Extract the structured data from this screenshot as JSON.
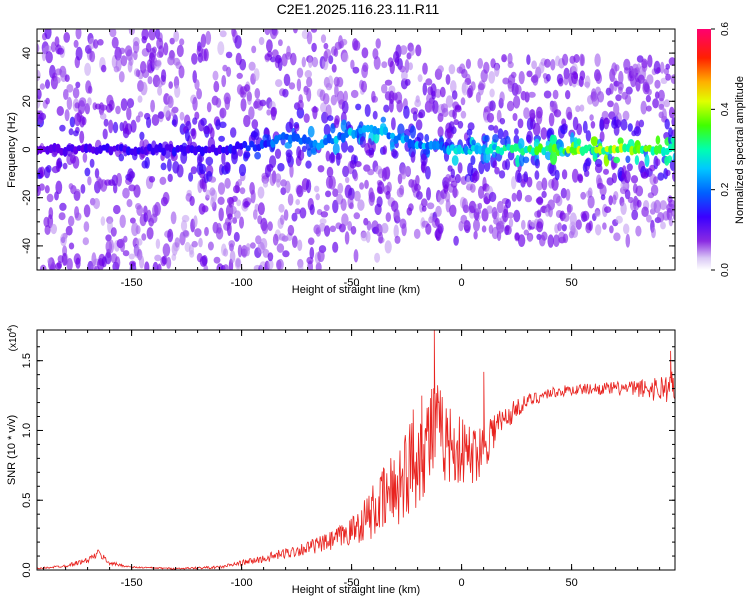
{
  "figure": {
    "title": "C2E1.2025.116.23.11.R11"
  },
  "colors": {
    "snr_line": "#e8231f",
    "axis": "#000000",
    "colormap": [
      "#ffffff",
      "#d9c7f5",
      "#8a2be2",
      "#5a00e0",
      "#0000ff",
      "#00bfff",
      "#00ffc0",
      "#00ff00",
      "#ffff00",
      "#ff8c00",
      "#ff0000",
      "#ff007f"
    ]
  },
  "chart_data": [
    {
      "type": "heatmap",
      "title": "C2E1.2025.116.23.11.R11",
      "xlabel": "Height of straight line (km)",
      "ylabel": "Frequency (Hz)",
      "xlim": [
        -193,
        97
      ],
      "ylim": [
        -50,
        50
      ],
      "xticks": [
        -150,
        -100,
        -50,
        0,
        50
      ],
      "xtick_labels": [
        "-150",
        "-100",
        "-50",
        "0",
        "50"
      ],
      "yticks": [
        -40,
        -20,
        0,
        20,
        40
      ],
      "ytick_labels": [
        "-40",
        "-20",
        "0",
        "20",
        "40"
      ],
      "colorbar": {
        "label": "Normalized spectral amplitude",
        "range": [
          0.0,
          0.6
        ],
        "ticks": [
          0.0,
          0.2,
          0.4,
          0.6
        ],
        "tick_labels": [
          "0.0",
          "0.2",
          "0.4",
          "0.6"
        ]
      },
      "ridge": {
        "x": [
          -193,
          -150,
          -110,
          -90,
          -80,
          -65,
          -50,
          -40,
          -30,
          -20,
          -10,
          0,
          10,
          30,
          50,
          70,
          97
        ],
        "freq_hz": [
          0,
          0,
          0,
          2,
          5,
          2,
          7,
          9,
          5,
          2,
          1,
          0,
          0,
          0,
          0,
          0,
          0
        ],
        "peak_amplitude": [
          0.15,
          0.2,
          0.2,
          0.25,
          0.3,
          0.3,
          0.33,
          0.35,
          0.3,
          0.3,
          0.32,
          0.33,
          0.35,
          0.38,
          0.45,
          0.45,
          0.4
        ]
      }
    },
    {
      "type": "line",
      "xlabel": "Height of straight line (km)",
      "ylabel": "SNR (10 * v/v)",
      "y_multiplier": "(x10",
      "y_multiplier_exp": "4",
      "y_multiplier_close": ")",
      "xlim": [
        -193,
        97
      ],
      "ylim": [
        0,
        1.72
      ],
      "xticks": [
        -150,
        -100,
        -50,
        0,
        50
      ],
      "xtick_labels": [
        "-150",
        "-100",
        "-50",
        "0",
        "50"
      ],
      "yticks": [
        0.0,
        0.5,
        1.0,
        1.5
      ],
      "ytick_labels": [
        "0.0",
        "0.5",
        "1.0",
        "1.5"
      ],
      "series": [
        {
          "x": [
            -193,
            -180,
            -170,
            -165,
            -160,
            -150,
            -130,
            -110,
            -100,
            -90,
            -80,
            -70,
            -60,
            -50,
            -45,
            -40,
            -35,
            -30,
            -25,
            -20,
            -15,
            -13,
            -10,
            -5,
            0,
            5,
            10,
            15,
            20,
            25,
            30,
            40,
            50,
            60,
            70,
            80,
            90,
            97
          ],
          "y": [
            0.01,
            0.03,
            0.07,
            0.12,
            0.05,
            0.02,
            0.01,
            0.02,
            0.05,
            0.08,
            0.12,
            0.16,
            0.2,
            0.28,
            0.35,
            0.42,
            0.5,
            0.6,
            0.7,
            0.82,
            0.95,
            1.02,
            0.98,
            0.9,
            0.85,
            0.82,
            0.9,
            1.02,
            1.08,
            1.16,
            1.21,
            1.27,
            1.29,
            1.3,
            1.3,
            1.3,
            1.3,
            1.32
          ],
          "noise": [
            0.005,
            0.01,
            0.02,
            0.03,
            0.015,
            0.006,
            0.005,
            0.01,
            0.02,
            0.03,
            0.04,
            0.05,
            0.07,
            0.1,
            0.15,
            0.2,
            0.25,
            0.3,
            0.34,
            0.36,
            0.38,
            0.4,
            0.34,
            0.28,
            0.25,
            0.22,
            0.2,
            0.15,
            0.1,
            0.07,
            0.05,
            0.04,
            0.04,
            0.04,
            0.05,
            0.06,
            0.1,
            0.12
          ]
        }
      ],
      "spikes": [
        {
          "x": -12.5,
          "y": 1.72
        },
        {
          "x": -18,
          "y": 1.25
        },
        {
          "x": 10,
          "y": 1.42
        },
        {
          "x": -22,
          "y": 1.15
        },
        {
          "x": 95,
          "y": 1.57
        }
      ]
    }
  ]
}
